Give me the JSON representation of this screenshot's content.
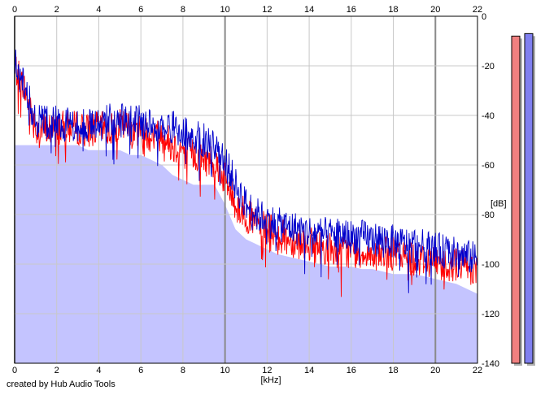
{
  "footer": {
    "credit": "created by Hub Audio Tools"
  },
  "chart_data": {
    "type": "line",
    "title": "",
    "xlabel": "[kHz]",
    "ylabel": "[dB]",
    "xlim": [
      0,
      22
    ],
    "ylim": [
      -140,
      0
    ],
    "xticks": [
      0,
      2,
      4,
      6,
      8,
      10,
      12,
      14,
      16,
      18,
      20,
      22
    ],
    "yticks": [
      0,
      -20,
      -40,
      -60,
      -80,
      -100,
      -120,
      -140
    ],
    "grid": true,
    "x": [
      0,
      0.5,
      1,
      1.5,
      2,
      2.5,
      3,
      3.5,
      4,
      4.5,
      5,
      5.5,
      6,
      6.5,
      7,
      7.5,
      8,
      8.5,
      9,
      9.5,
      10,
      10.5,
      11,
      11.5,
      12,
      12.5,
      13,
      13.5,
      14,
      14.5,
      15,
      15.5,
      16,
      16.5,
      17,
      17.5,
      18,
      18.5,
      19,
      19.5,
      20,
      20.5,
      21,
      21.5,
      22
    ],
    "series": [
      {
        "color": "#ff0000",
        "values": [
          -20,
          -30,
          -45,
          -46,
          -45,
          -45,
          -45,
          -46,
          -45,
          -46,
          -44,
          -45,
          -46,
          -48,
          -48,
          -52,
          -54,
          -56,
          -58,
          -58,
          -66,
          -76,
          -80,
          -84,
          -86,
          -88,
          -90,
          -91,
          -92,
          -93,
          -94,
          -95,
          -95,
          -95,
          -96,
          -96,
          -96,
          -97,
          -98,
          -98,
          -99,
          -100,
          -100,
          -101,
          -102
        ]
      },
      {
        "color": "#0000cc",
        "values": [
          -18,
          -30,
          -42,
          -43,
          -43,
          -43,
          -44,
          -44,
          -42,
          -42,
          -42,
          -42,
          -43,
          -44,
          -44,
          -45,
          -46,
          -48,
          -50,
          -51,
          -58,
          -68,
          -76,
          -80,
          -82,
          -84,
          -85,
          -86,
          -87,
          -88,
          -88,
          -88,
          -89,
          -89,
          -90,
          -90,
          -91,
          -92,
          -92,
          -93,
          -94,
          -95,
          -96,
          -97,
          -98
        ]
      }
    ],
    "area": {
      "color": "#c4c4ff",
      "values": [
        -52,
        -52,
        -52,
        -52,
        -52,
        -52,
        -52,
        -54,
        -54,
        -54,
        -54,
        -56,
        -56,
        -58,
        -60,
        -64,
        -66,
        -68,
        -68,
        -68,
        -76,
        -86,
        -90,
        -92,
        -94,
        -96,
        -97,
        -98,
        -99,
        -100,
        -101,
        -101,
        -101,
        -102,
        -102,
        -103,
        -104,
        -104,
        -104,
        -105,
        -106,
        -107,
        -108,
        -110,
        -112
      ]
    },
    "level_meters": [
      {
        "color": "#f08080",
        "value_db": -8
      },
      {
        "color": "#8080f0",
        "value_db": -7
      }
    ]
  }
}
